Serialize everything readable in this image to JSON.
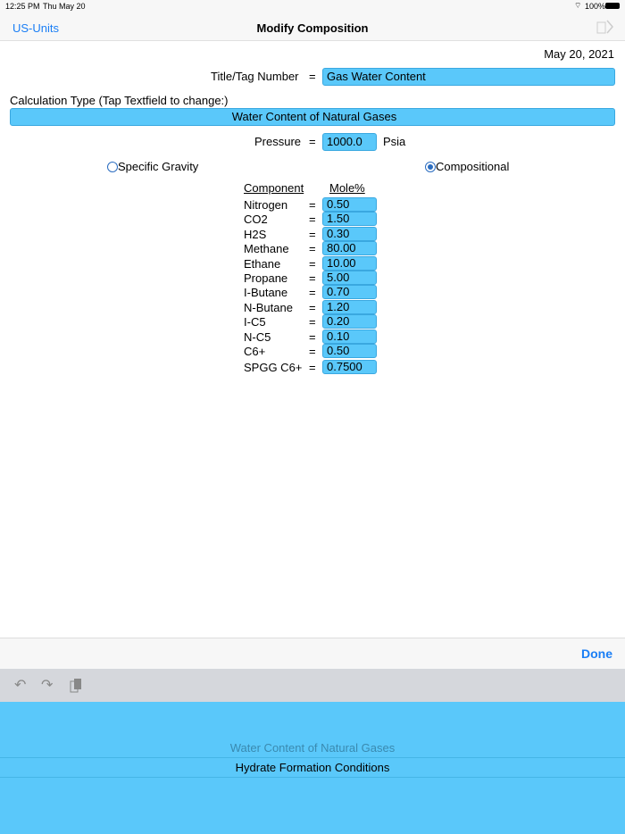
{
  "status": {
    "time": "12:25 PM",
    "date": "Thu May 20",
    "battery": "100%"
  },
  "nav": {
    "back": "US-Units",
    "title": "Modify Composition",
    "share_icon": "export-icon"
  },
  "date": "May 20, 2021",
  "title_tag": {
    "label": "Title/Tag Number",
    "eq": "=",
    "value": "Gas Water Content"
  },
  "calc_type": {
    "label": "Calculation Type (Tap Textfield to change:)",
    "value": "Water Content of Natural Gases"
  },
  "pressure": {
    "label": "Pressure",
    "eq": "=",
    "value": "1000.0",
    "unit": "Psia"
  },
  "radios": [
    {
      "label": "Specific Gravity",
      "selected": false
    },
    {
      "label": "Compositional",
      "selected": true
    }
  ],
  "table": {
    "headers": [
      "Component",
      "Mole%"
    ],
    "rows": [
      {
        "name": "Nitrogen",
        "eq": "=",
        "value": "0.50"
      },
      {
        "name": "CO2",
        "eq": "=",
        "value": "1.50"
      },
      {
        "name": "H2S",
        "eq": "=",
        "value": "0.30"
      },
      {
        "name": "Methane",
        "eq": "=",
        "value": "80.00"
      },
      {
        "name": "Ethane",
        "eq": "=",
        "value": "10.00"
      },
      {
        "name": "Propane",
        "eq": "=",
        "value": "5.00"
      },
      {
        "name": "I-Butane",
        "eq": "=",
        "value": "0.70"
      },
      {
        "name": "N-Butane",
        "eq": "=",
        "value": "1.20"
      },
      {
        "name": "I-C5",
        "eq": "=",
        "value": "0.20"
      },
      {
        "name": "N-C5",
        "eq": "=",
        "value": "0.10"
      },
      {
        "name": "C6+",
        "eq": "=",
        "value": "0.50"
      },
      {
        "name": "SPGG C6+",
        "eq": "=",
        "value": "0.7500"
      }
    ]
  },
  "toolbar": {
    "done": "Done"
  },
  "picker": {
    "options": [
      "Water Content of Natural Gases",
      "Hydrate Formation Conditions"
    ],
    "selected": "Hydrate Formation Conditions"
  }
}
